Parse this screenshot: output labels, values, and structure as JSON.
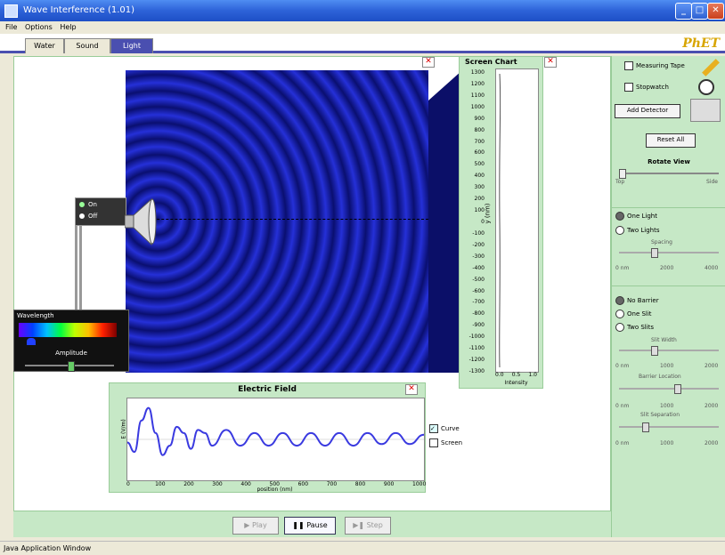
{
  "window": {
    "title": "Wave Interference (1.01)",
    "status": "Java Application Window"
  },
  "menu": [
    "File",
    "Options",
    "Help"
  ],
  "tabs": [
    "Water",
    "Sound",
    "Light"
  ],
  "active_tab": "Light",
  "brand": "PhET",
  "light_source": {
    "on_label": "On",
    "off_label": "Off"
  },
  "wavelength_panel": {
    "title": "Wavelength",
    "amplitude_label": "Amplitude",
    "amplitude_value": 0.55
  },
  "screen_chart": {
    "title": "Screen Chart",
    "ylabel": "y (nm)",
    "xlabel": "Intensity",
    "yticks": [
      "1300",
      "1200",
      "1100",
      "1000",
      "900",
      "800",
      "700",
      "600",
      "500",
      "400",
      "300",
      "200",
      "100",
      "0",
      "-100",
      "-200",
      "-300",
      "-400",
      "-500",
      "-600",
      "-700",
      "-800",
      "-900",
      "-1000",
      "-1100",
      "-1200",
      "-1300"
    ],
    "xticks": [
      "0.0",
      "0.5",
      "1.0"
    ]
  },
  "efield_chart": {
    "title": "Electric Field",
    "ylabel": "E (V/m)",
    "xlabel": "position (nm)",
    "xticks": [
      "0",
      "100",
      "200",
      "300",
      "400",
      "500",
      "600",
      "700",
      "800",
      "900",
      "1000"
    ],
    "curve_label": "Curve",
    "screen_label": "Screen",
    "curve_checked": true,
    "screen_checked": false
  },
  "controls": {
    "measuring_tape": "Measuring Tape",
    "stopwatch": "Stopwatch",
    "add_detector": "Add Detector",
    "reset_all": "Reset All",
    "rotate_view": "Rotate View",
    "rotate_min": "Top",
    "rotate_max": "Side",
    "one_light": "One Light",
    "two_lights": "Two Lights",
    "two_lights_slider": "Spacing",
    "two_lights_ticks": [
      "0 nm",
      "2000",
      "4000"
    ],
    "no_barrier": "No Barrier",
    "one_slit": "One Slit",
    "two_slits": "Two Slits",
    "slit_width": "Slit Width",
    "barrier_location": "Barrier Location",
    "slit_separation": "Slit Separation",
    "slit_ticks": [
      "0 nm",
      "1000",
      "2000"
    ],
    "one_light_selected": true,
    "no_barrier_selected": true
  },
  "playback": {
    "play": "Play",
    "pause": "Pause",
    "step": "Step"
  },
  "colors": {
    "wave_dark": "#0a0f70",
    "wave_light": "#2530d8",
    "panel_green": "#c6e8c6",
    "tab_active": "#4a4fb0",
    "phet_gold": "#d8a500"
  },
  "chart_data": {
    "type": "line",
    "title": "Electric Field",
    "xlabel": "position (nm)",
    "ylabel": "E (V/m)",
    "x": [
      0,
      25,
      50,
      75,
      100,
      125,
      150,
      175,
      200,
      225,
      250,
      275,
      300,
      350,
      400,
      450,
      500,
      550,
      600,
      650,
      700,
      750,
      800,
      850,
      900,
      950,
      1000,
      1050
    ],
    "values": [
      -0.1,
      -0.4,
      0.6,
      1.0,
      0.2,
      -0.5,
      -0.2,
      0.4,
      0.2,
      -0.3,
      0.3,
      0.2,
      -0.2,
      0.3,
      -0.2,
      0.2,
      -0.2,
      0.2,
      -0.2,
      0.2,
      -0.2,
      0.2,
      -0.2,
      0.2,
      -0.15,
      0.2,
      -0.15,
      0.15
    ],
    "xlim": [
      0,
      1050
    ],
    "ylim": [
      -1.3,
      1.3
    ]
  }
}
